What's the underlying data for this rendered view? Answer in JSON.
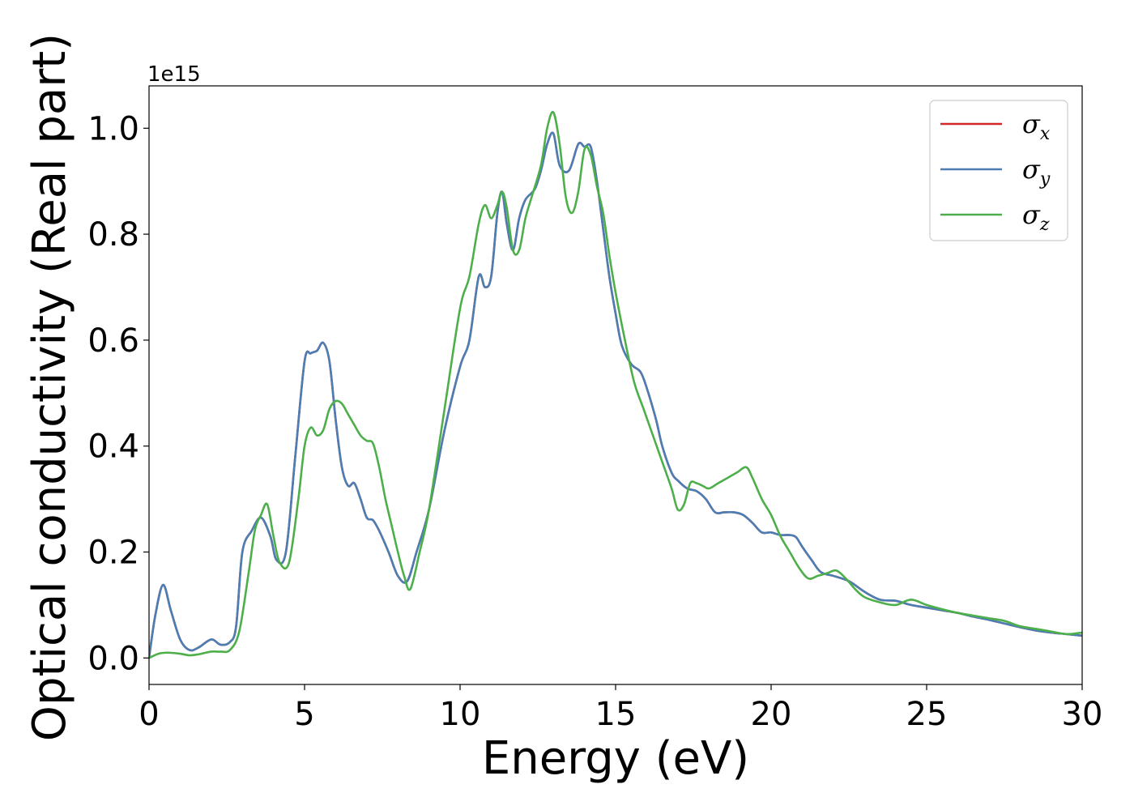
{
  "chart_data": {
    "type": "line",
    "xlabel": "Energy (eV)",
    "ylabel": "Optical conductivity (Real part)",
    "y_offset_label": "1e15",
    "xlim": [
      0,
      30
    ],
    "ylim": [
      -0.05,
      1.08
    ],
    "x_ticks": [
      0,
      5,
      10,
      15,
      20,
      25,
      30
    ],
    "x_tick_labels": [
      "0",
      "5",
      "10",
      "15",
      "20",
      "25",
      "30"
    ],
    "y_ticks": [
      0.0,
      0.2,
      0.4,
      0.6,
      0.8,
      1.0
    ],
    "y_tick_labels": [
      "0.0",
      "0.2",
      "0.4",
      "0.6",
      "0.8",
      "1.0"
    ],
    "grid": false,
    "legend_position": "top-right",
    "series": [
      {
        "name": "σ",
        "subscript": "x",
        "color": "#d62728",
        "x": [
          0.0,
          0.2,
          0.45,
          0.7,
          1.0,
          1.3,
          1.6,
          2.0,
          2.3,
          2.6,
          2.8,
          3.0,
          3.3,
          3.6,
          3.9,
          4.1,
          4.4,
          4.7,
          5.0,
          5.2,
          5.4,
          5.6,
          5.8,
          6.0,
          6.2,
          6.4,
          6.6,
          6.8,
          7.0,
          7.2,
          7.4,
          7.7,
          8.0,
          8.3,
          8.6,
          9.0,
          9.5,
          10.0,
          10.3,
          10.6,
          10.8,
          11.0,
          11.2,
          11.35,
          11.5,
          11.7,
          11.9,
          12.1,
          12.4,
          12.6,
          12.8,
          13.0,
          13.2,
          13.5,
          13.8,
          14.0,
          14.2,
          14.4,
          14.6,
          14.8,
          15.0,
          15.2,
          15.5,
          15.8,
          16.0,
          16.3,
          16.5,
          16.8,
          17.0,
          17.3,
          17.6,
          17.9,
          18.2,
          18.5,
          18.8,
          19.1,
          19.4,
          19.7,
          20.0,
          20.3,
          20.6,
          20.8,
          21.0,
          21.3,
          21.6,
          22.0,
          22.5,
          23.0,
          23.5,
          24.0,
          24.5,
          25.0,
          25.5,
          26.0,
          26.5,
          27.0,
          27.5,
          28.0,
          28.5,
          29.0,
          29.5,
          30.0
        ],
        "values": [
          0.0,
          0.08,
          0.138,
          0.09,
          0.035,
          0.015,
          0.02,
          0.035,
          0.025,
          0.03,
          0.06,
          0.2,
          0.24,
          0.265,
          0.23,
          0.185,
          0.2,
          0.38,
          0.56,
          0.575,
          0.58,
          0.595,
          0.56,
          0.45,
          0.36,
          0.325,
          0.33,
          0.3,
          0.265,
          0.26,
          0.24,
          0.2,
          0.155,
          0.145,
          0.2,
          0.28,
          0.43,
          0.55,
          0.6,
          0.72,
          0.7,
          0.72,
          0.84,
          0.88,
          0.82,
          0.77,
          0.83,
          0.865,
          0.885,
          0.92,
          0.97,
          0.99,
          0.93,
          0.92,
          0.97,
          0.965,
          0.965,
          0.9,
          0.81,
          0.72,
          0.65,
          0.59,
          0.555,
          0.54,
          0.51,
          0.45,
          0.4,
          0.35,
          0.335,
          0.32,
          0.315,
          0.3,
          0.275,
          0.275,
          0.275,
          0.27,
          0.255,
          0.237,
          0.237,
          0.232,
          0.232,
          0.228,
          0.21,
          0.185,
          0.162,
          0.155,
          0.145,
          0.125,
          0.11,
          0.108,
          0.1,
          0.095,
          0.09,
          0.085,
          0.078,
          0.072,
          0.065,
          0.058,
          0.052,
          0.048,
          0.045,
          0.042
        ]
      },
      {
        "name": "σ",
        "subscript": "y",
        "color": "#4a7eb4",
        "x": [
          0.0,
          0.2,
          0.45,
          0.7,
          1.0,
          1.3,
          1.6,
          2.0,
          2.3,
          2.6,
          2.8,
          3.0,
          3.3,
          3.6,
          3.9,
          4.1,
          4.4,
          4.7,
          5.0,
          5.2,
          5.4,
          5.6,
          5.8,
          6.0,
          6.2,
          6.4,
          6.6,
          6.8,
          7.0,
          7.2,
          7.4,
          7.7,
          8.0,
          8.3,
          8.6,
          9.0,
          9.5,
          10.0,
          10.3,
          10.6,
          10.8,
          11.0,
          11.2,
          11.35,
          11.5,
          11.7,
          11.9,
          12.1,
          12.4,
          12.6,
          12.8,
          13.0,
          13.2,
          13.5,
          13.8,
          14.0,
          14.2,
          14.4,
          14.6,
          14.8,
          15.0,
          15.2,
          15.5,
          15.8,
          16.0,
          16.3,
          16.5,
          16.8,
          17.0,
          17.3,
          17.6,
          17.9,
          18.2,
          18.5,
          18.8,
          19.1,
          19.4,
          19.7,
          20.0,
          20.3,
          20.6,
          20.8,
          21.0,
          21.3,
          21.6,
          22.0,
          22.5,
          23.0,
          23.5,
          24.0,
          24.5,
          25.0,
          25.5,
          26.0,
          26.5,
          27.0,
          27.5,
          28.0,
          28.5,
          29.0,
          29.5,
          30.0
        ],
        "values": [
          0.0,
          0.08,
          0.138,
          0.09,
          0.035,
          0.015,
          0.02,
          0.035,
          0.025,
          0.03,
          0.06,
          0.2,
          0.24,
          0.265,
          0.23,
          0.185,
          0.2,
          0.38,
          0.56,
          0.575,
          0.58,
          0.595,
          0.56,
          0.45,
          0.36,
          0.325,
          0.33,
          0.3,
          0.265,
          0.26,
          0.24,
          0.2,
          0.155,
          0.145,
          0.2,
          0.28,
          0.43,
          0.55,
          0.6,
          0.72,
          0.7,
          0.72,
          0.84,
          0.88,
          0.82,
          0.77,
          0.83,
          0.865,
          0.885,
          0.92,
          0.97,
          0.99,
          0.93,
          0.92,
          0.97,
          0.965,
          0.965,
          0.9,
          0.81,
          0.72,
          0.65,
          0.59,
          0.555,
          0.54,
          0.51,
          0.45,
          0.4,
          0.35,
          0.335,
          0.32,
          0.315,
          0.3,
          0.275,
          0.275,
          0.275,
          0.27,
          0.255,
          0.237,
          0.237,
          0.232,
          0.232,
          0.228,
          0.21,
          0.185,
          0.162,
          0.155,
          0.145,
          0.125,
          0.11,
          0.108,
          0.1,
          0.095,
          0.09,
          0.085,
          0.078,
          0.072,
          0.065,
          0.058,
          0.052,
          0.048,
          0.045,
          0.042
        ]
      },
      {
        "name": "σ",
        "subscript": "z",
        "color": "#4daf4a",
        "x": [
          0.0,
          0.3,
          0.6,
          1.0,
          1.3,
          1.6,
          2.0,
          2.3,
          2.6,
          2.9,
          3.2,
          3.4,
          3.6,
          3.8,
          4.0,
          4.2,
          4.5,
          4.8,
          5.0,
          5.2,
          5.4,
          5.6,
          5.8,
          6.0,
          6.2,
          6.4,
          6.6,
          6.8,
          7.0,
          7.2,
          7.4,
          7.6,
          7.8,
          8.0,
          8.2,
          8.4,
          8.7,
          9.0,
          9.5,
          10.0,
          10.3,
          10.6,
          10.8,
          11.0,
          11.2,
          11.35,
          11.5,
          11.7,
          11.9,
          12.1,
          12.3,
          12.6,
          12.8,
          13.0,
          13.2,
          13.4,
          13.6,
          13.8,
          14.0,
          14.2,
          14.4,
          14.6,
          14.8,
          15.0,
          15.3,
          15.6,
          15.9,
          16.2,
          16.5,
          16.8,
          17.0,
          17.2,
          17.4,
          17.6,
          17.8,
          18.0,
          18.3,
          18.6,
          18.9,
          19.2,
          19.4,
          19.7,
          20.0,
          20.3,
          20.6,
          20.9,
          21.2,
          21.5,
          21.8,
          22.1,
          22.4,
          22.7,
          23.0,
          23.5,
          24.0,
          24.5,
          25.0,
          25.5,
          26.0,
          26.5,
          27.0,
          27.5,
          28.0,
          28.5,
          29.0,
          29.5,
          30.0
        ],
        "values": [
          0.0,
          0.008,
          0.01,
          0.008,
          0.005,
          0.007,
          0.012,
          0.012,
          0.015,
          0.05,
          0.16,
          0.24,
          0.27,
          0.29,
          0.23,
          0.18,
          0.18,
          0.3,
          0.4,
          0.435,
          0.42,
          0.43,
          0.47,
          0.485,
          0.48,
          0.46,
          0.44,
          0.42,
          0.41,
          0.405,
          0.36,
          0.3,
          0.25,
          0.2,
          0.155,
          0.13,
          0.2,
          0.28,
          0.47,
          0.66,
          0.72,
          0.82,
          0.855,
          0.83,
          0.855,
          0.88,
          0.85,
          0.77,
          0.77,
          0.83,
          0.87,
          0.93,
          1.0,
          1.03,
          0.97,
          0.87,
          0.84,
          0.88,
          0.96,
          0.95,
          0.89,
          0.84,
          0.76,
          0.69,
          0.6,
          0.52,
          0.47,
          0.42,
          0.37,
          0.32,
          0.28,
          0.29,
          0.33,
          0.33,
          0.325,
          0.32,
          0.33,
          0.34,
          0.35,
          0.36,
          0.34,
          0.3,
          0.27,
          0.23,
          0.2,
          0.17,
          0.15,
          0.155,
          0.16,
          0.165,
          0.15,
          0.13,
          0.115,
          0.105,
          0.1,
          0.11,
          0.1,
          0.092,
          0.085,
          0.08,
          0.075,
          0.07,
          0.06,
          0.055,
          0.05,
          0.045,
          0.048
        ]
      }
    ]
  }
}
